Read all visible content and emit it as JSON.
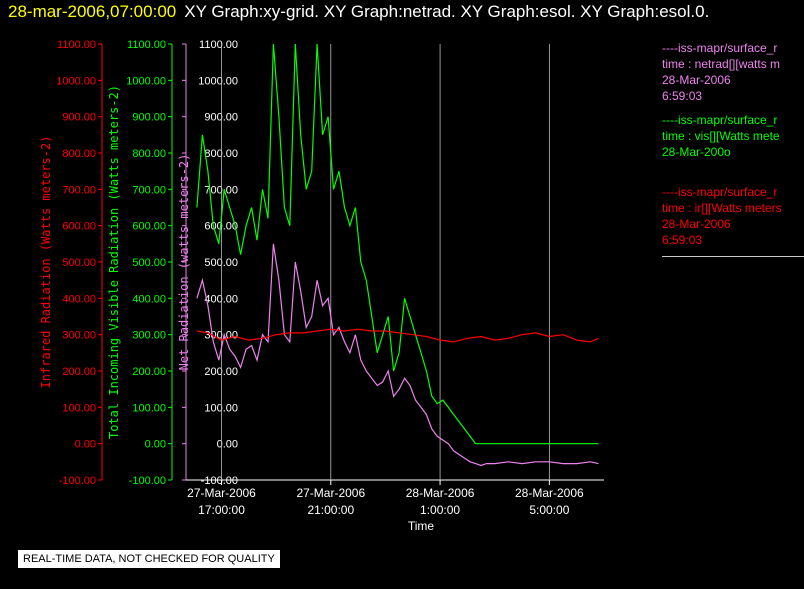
{
  "header": {
    "timestamp": "28-mar-2006,07:00:00",
    "graphs": "XY Graph:xy-grid.  XY Graph:netrad.  XY Graph:esol.  XY Graph:esol.0."
  },
  "qc_notice": "REAL-TIME DATA, NOT CHECKED FOR QUALITY",
  "legend": [
    {
      "line1": "----iss-mapr/surface_r",
      "line2": "time : netrad[][watts m",
      "line3": "28-Mar-2006",
      "line4": "6:59:03",
      "color": "#ee82ee"
    },
    {
      "line1": "----iss-mapr/surface_r",
      "line2": "time : vis[][Watts mete",
      "line3": "28-Mar-200o",
      "line4": "",
      "color": "#00ff00"
    },
    {
      "line1": "----iss-mapr/surface_r",
      "line2": "time : ir[][Watts meters",
      "line3": "28-Mar-2006",
      "line4": "6:59:03",
      "color": "#ff0000"
    }
  ],
  "chart_data": {
    "type": "line",
    "title": "",
    "xlabel": "Time",
    "x_ticks": [
      {
        "label1": "27-Mar-2006",
        "label2": "17:00:00",
        "hour": 0
      },
      {
        "label1": "27-Mar-2006",
        "label2": "21:00:00",
        "hour": 4
      },
      {
        "label1": "28-Mar-2006",
        "label2": "1:00:00",
        "hour": 8
      },
      {
        "label1": "28-Mar-2006",
        "label2": "5:00:00",
        "hour": 12
      }
    ],
    "xlim_hours": [
      -1.3,
      14.0
    ],
    "grid_x": true,
    "y_axes": [
      {
        "name": "Infrared Radiation (Watts meters-2)",
        "color": "#ff0000",
        "ylim": [
          -100,
          1100
        ],
        "ticks": [
          "1100.00",
          "1000.00",
          "900.00",
          "800.00",
          "700.00",
          "600.00",
          "500.00",
          "400.00",
          "300.00",
          "200.00",
          "100.00",
          "0.00",
          "-100.00"
        ]
      },
      {
        "name": "Total Incoming Visible Radiation (Watts meters-2)",
        "color": "#00ff00",
        "ylim": [
          -100,
          1100
        ],
        "ticks": [
          "1100.00",
          "1000.00",
          "900.00",
          "800.00",
          "700.00",
          "600.00",
          "500.00",
          "400.00",
          "300.00",
          "200.00",
          "100.00",
          "0.00",
          "-100.00"
        ]
      },
      {
        "name": "Net Radiation (watts meters-2)",
        "color": "#ee82ee",
        "ylim": [
          -100,
          1100
        ],
        "ticks": [
          "1100.00",
          "1000.00",
          "900.00",
          "800.00",
          "700.00",
          "600.00",
          "500.00",
          "400.00",
          "300.00",
          "200.00",
          "100.00",
          "0.00",
          "-100.00"
        ]
      }
    ],
    "series": [
      {
        "color": "#00ff00",
        "x": [
          -0.9,
          -0.7,
          -0.5,
          -0.3,
          -0.1,
          0.1,
          0.3,
          0.5,
          0.7,
          0.9,
          1.1,
          1.3,
          1.5,
          1.7,
          1.9,
          2.1,
          2.3,
          2.5,
          2.7,
          2.9,
          3.1,
          3.3,
          3.5,
          3.7,
          3.9,
          4.1,
          4.3,
          4.5,
          4.7,
          4.9,
          5.1,
          5.3,
          5.5,
          5.7,
          5.9,
          6.1,
          6.3,
          6.5,
          6.7,
          6.9,
          7.1,
          7.3,
          7.5,
          7.7,
          7.9,
          8.1,
          8.3,
          8.5,
          8.7,
          8.9,
          9.1,
          9.3,
          9.5,
          9.7,
          10.0,
          10.5,
          11.0,
          11.5,
          12.0,
          12.5,
          13.0,
          13.5,
          13.8
        ],
        "y": [
          650,
          850,
          750,
          600,
          550,
          700,
          650,
          600,
          520,
          600,
          650,
          560,
          700,
          620,
          1100,
          900,
          650,
          600,
          1100,
          850,
          700,
          750,
          1100,
          850,
          900,
          700,
          750,
          650,
          600,
          650,
          500,
          450,
          350,
          250,
          300,
          350,
          200,
          250,
          400,
          350,
          300,
          250,
          200,
          130,
          110,
          120,
          100,
          80,
          60,
          40,
          20,
          0,
          0,
          0,
          0,
          0,
          0,
          0,
          0,
          0,
          0,
          0,
          0
        ]
      },
      {
        "color": "#ee82ee",
        "x": [
          -0.9,
          -0.7,
          -0.5,
          -0.3,
          -0.1,
          0.1,
          0.3,
          0.5,
          0.7,
          0.9,
          1.1,
          1.3,
          1.5,
          1.7,
          1.9,
          2.1,
          2.3,
          2.5,
          2.7,
          2.9,
          3.1,
          3.3,
          3.5,
          3.7,
          3.9,
          4.1,
          4.3,
          4.5,
          4.7,
          4.9,
          5.1,
          5.3,
          5.5,
          5.7,
          5.9,
          6.1,
          6.3,
          6.5,
          6.7,
          6.9,
          7.1,
          7.3,
          7.5,
          7.7,
          7.9,
          8.1,
          8.3,
          8.5,
          8.7,
          8.9,
          9.1,
          9.3,
          9.5,
          9.7,
          10.0,
          10.5,
          11.0,
          11.5,
          12.0,
          12.5,
          13.0,
          13.5,
          13.8
        ],
        "y": [
          400,
          450,
          380,
          280,
          230,
          300,
          260,
          240,
          210,
          260,
          270,
          230,
          300,
          280,
          550,
          450,
          300,
          280,
          500,
          420,
          320,
          350,
          450,
          380,
          400,
          300,
          320,
          280,
          250,
          300,
          230,
          200,
          180,
          160,
          170,
          200,
          130,
          150,
          180,
          160,
          120,
          100,
          80,
          40,
          20,
          10,
          0,
          -20,
          -30,
          -40,
          -50,
          -55,
          -60,
          -55,
          -55,
          -50,
          -55,
          -50,
          -50,
          -55,
          -55,
          -50,
          -55
        ]
      },
      {
        "color": "#ff0000",
        "x": [
          -0.9,
          -0.5,
          0,
          0.5,
          1.0,
          1.5,
          2.0,
          2.5,
          3.0,
          3.5,
          4.0,
          4.5,
          5.0,
          5.5,
          6.0,
          6.5,
          7.0,
          7.5,
          8.0,
          8.5,
          9.0,
          9.5,
          10.0,
          10.5,
          11.0,
          11.5,
          12.0,
          12.5,
          13.0,
          13.5,
          13.8
        ],
        "y": [
          310,
          305,
          285,
          295,
          285,
          290,
          300,
          305,
          305,
          310,
          315,
          310,
          315,
          310,
          310,
          305,
          300,
          295,
          285,
          280,
          290,
          295,
          285,
          290,
          300,
          305,
          295,
          300,
          285,
          280,
          290
        ]
      }
    ]
  }
}
